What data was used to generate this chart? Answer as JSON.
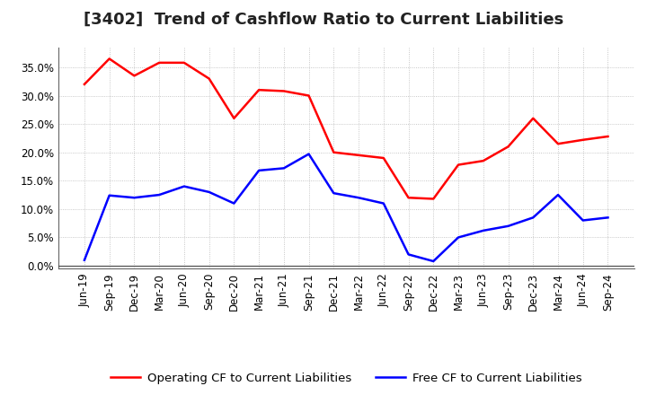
{
  "title": "[3402]  Trend of Cashflow Ratio to Current Liabilities",
  "x_labels": [
    "Jun-19",
    "Sep-19",
    "Dec-19",
    "Mar-20",
    "Jun-20",
    "Sep-20",
    "Dec-20",
    "Mar-21",
    "Jun-21",
    "Sep-21",
    "Dec-21",
    "Mar-22",
    "Jun-22",
    "Sep-22",
    "Dec-22",
    "Mar-23",
    "Jun-23",
    "Sep-23",
    "Dec-23",
    "Mar-24",
    "Jun-24",
    "Sep-24"
  ],
  "operating_cf": [
    0.32,
    0.365,
    0.335,
    0.358,
    0.358,
    0.33,
    0.26,
    0.31,
    0.308,
    0.3,
    0.2,
    0.195,
    0.19,
    0.12,
    0.118,
    0.178,
    0.185,
    0.21,
    0.26,
    0.215,
    0.222,
    0.228
  ],
  "free_cf": [
    0.01,
    0.124,
    0.12,
    0.125,
    0.14,
    0.13,
    0.11,
    0.168,
    0.172,
    0.197,
    0.128,
    0.12,
    0.11,
    0.02,
    0.008,
    0.05,
    0.062,
    0.07,
    0.085,
    0.125,
    0.08,
    0.085
  ],
  "operating_color": "#ff0000",
  "free_color": "#0000ff",
  "ylim": [
    -0.005,
    0.385
  ],
  "yticks": [
    0.0,
    0.05,
    0.1,
    0.15,
    0.2,
    0.25,
    0.3,
    0.35
  ],
  "background_color": "#ffffff",
  "grid_color": "#999999",
  "legend_operating": "Operating CF to Current Liabilities",
  "legend_free": "Free CF to Current Liabilities",
  "title_fontsize": 13,
  "axis_fontsize": 8.5,
  "legend_fontsize": 9.5
}
